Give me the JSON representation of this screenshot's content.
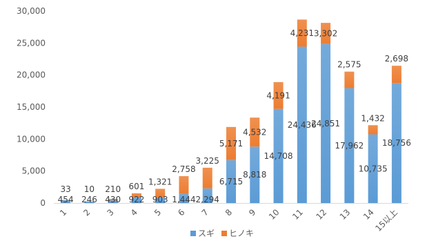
{
  "chart_data": {
    "type": "bar",
    "stacked": true,
    "categories": [
      "1",
      "2",
      "3",
      "4",
      "5",
      "6",
      "7",
      "8",
      "9",
      "10",
      "11",
      "12",
      "13",
      "14",
      "15以上"
    ],
    "series": [
      {
        "name": "スギ",
        "color": "#5B9BD5",
        "values": [
          454,
          246,
          430,
          922,
          903,
          1444,
          2294,
          6715,
          8818,
          14708,
          24436,
          24851,
          17962,
          10735,
          18756
        ]
      },
      {
        "name": "ヒノキ",
        "color": "#ED7D31",
        "values": [
          33,
          10,
          210,
          601,
          1321,
          2758,
          3225,
          5171,
          4532,
          4191,
          4231,
          3302,
          2575,
          1432,
          2698
        ]
      }
    ],
    "y_ticks": [
      "0",
      "5,000",
      "10,000",
      "15,000",
      "20,000",
      "25,000",
      "30,000"
    ],
    "ylim": [
      0,
      30000
    ],
    "grid": false,
    "legend_position": "bottom",
    "data_labels": {
      "スギ": [
        "454",
        "246",
        "430",
        "922",
        "903",
        "1,444",
        "2,294",
        "6,715",
        "8,818",
        "14,708",
        "24,436",
        "24,851",
        "17,962",
        "10,735",
        "18,756"
      ],
      "ヒノキ": [
        "33",
        "10",
        "210",
        "601",
        "1,321",
        "2,758",
        "3,225",
        "5,171",
        "4,532",
        "4,191",
        "4,231",
        "3,302",
        "2,575",
        "1,432",
        "2,698"
      ]
    }
  }
}
